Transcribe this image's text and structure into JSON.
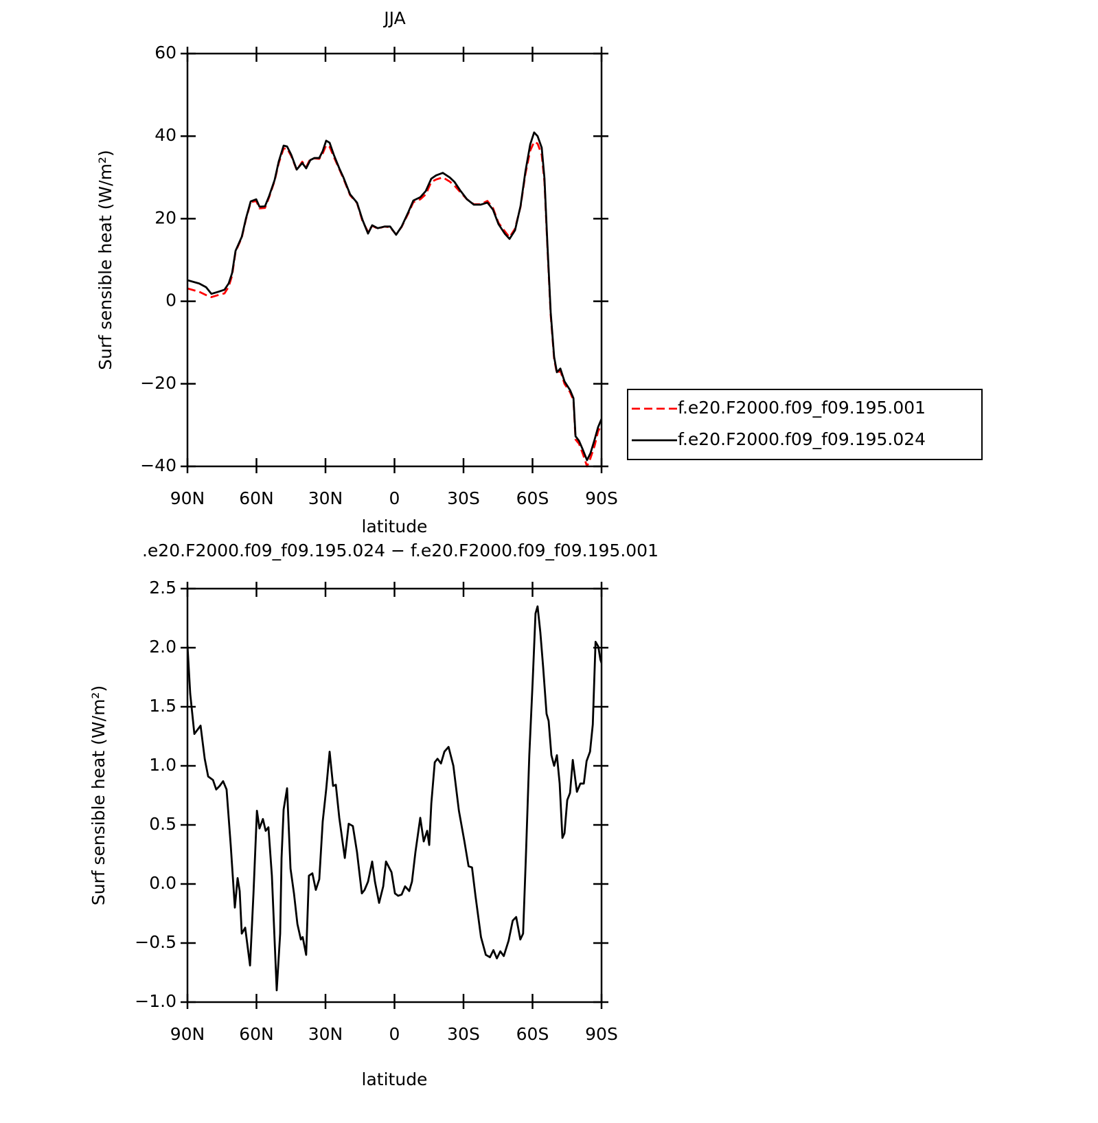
{
  "chart_data": [
    {
      "type": "line",
      "title": "JJA",
      "xlabel": "latitude",
      "ylabel": "Surf sensible heat (W/m²)",
      "xlim": [
        90,
        -90
      ],
      "xticks": [
        {
          "value": 90,
          "label": "90N"
        },
        {
          "value": 60,
          "label": "60N"
        },
        {
          "value": 30,
          "label": "30N"
        },
        0,
        {
          "value": -30,
          "label": "30S"
        },
        {
          "value": -60,
          "label": "60S"
        },
        {
          "value": -90,
          "label": "90S"
        }
      ],
      "ylim": [
        -40,
        60
      ],
      "yticks": [
        {
          "value": -40,
          "label": "−40"
        },
        {
          "value": -20,
          "label": "−20"
        },
        0,
        20,
        40,
        60
      ],
      "legend": "outside-right",
      "x": [
        90,
        84.9,
        81.9,
        79.6,
        76.6,
        73.9,
        72.1,
        70.6,
        69.1,
        66.4,
        64.6,
        62.5,
        60.1,
        58.7,
        56.3,
        54.5,
        52.1,
        50.3,
        48.2,
        46.7,
        44.9,
        42.5,
        40.1,
        38.4,
        36.6,
        34.8,
        32.7,
        31.2,
        29.7,
        28.2,
        26.4,
        24.0,
        22.2,
        19.3,
        16.3,
        13.9,
        11.5,
        9.7,
        7.3,
        4.3,
        1.9,
        -0.7,
        -3.1,
        -6.1,
        -8.2,
        -11.2,
        -13.6,
        -16.0,
        -18.1,
        -21.0,
        -24.0,
        -26.1,
        -28.5,
        -31.5,
        -34.5,
        -37.5,
        -40.4,
        -42.8,
        -45.2,
        -47.9,
        -50.0,
        -52.4,
        -54.8,
        -56.9,
        -59.0,
        -60.7,
        -62.2,
        -64.0,
        -65.2,
        -66.4,
        -67.9,
        -69.4,
        -70.6,
        -72.1,
        -73.9,
        -76.3,
        -77.8,
        -78.7,
        -80.2,
        -81.9,
        -83.7,
        -85.2,
        -87.0,
        -88.5,
        -90
      ],
      "series": [
        {
          "name": "f.e20.F2000.f09_f09.195.001",
          "color": "#ff0000",
          "dash": true,
          "values": [
            3.1,
            2.3,
            1.5,
            1.0,
            1.5,
            1.9,
            3.5,
            6.2,
            12.0,
            15.4,
            19.8,
            24.0,
            24.3,
            22.5,
            22.6,
            25.2,
            29.2,
            33.5,
            37.0,
            37.0,
            35.2,
            31.8,
            33.8,
            32.5,
            34.5,
            34.6,
            34.5,
            35.8,
            37.8,
            37.4,
            35.0,
            32.0,
            29.7,
            25.7,
            23.8,
            19.4,
            16.8,
            18.3,
            17.6,
            18.1,
            17.9,
            16.2,
            18.0,
            21.4,
            24.0,
            24.7,
            25.9,
            28.9,
            29.5,
            30.0,
            29.0,
            28.0,
            26.5,
            24.7,
            23.5,
            23.5,
            24.3,
            22.6,
            19.0,
            17.0,
            15.5,
            17.6,
            22.9,
            30.8,
            36.5,
            38.6,
            38.2,
            35.5,
            28.8,
            14.0,
            -3.4,
            -14.0,
            -17.5,
            -16.8,
            -20.0,
            -22.0,
            -24.0,
            -33.5,
            -34.5,
            -37.0,
            -40.0,
            -38.0,
            -35.0,
            -31.5,
            -30.0
          ]
        },
        {
          "name": "f.e20.F2000.f09_f09.195.024",
          "color": "#000000",
          "dash": false,
          "values": [
            5.1,
            4.3,
            3.4,
            1.8,
            2.3,
            2.8,
            4.3,
            6.8,
            12.2,
            15.6,
            20.0,
            24.2,
            24.7,
            22.9,
            23.0,
            25.5,
            29.4,
            33.9,
            37.7,
            37.5,
            35.5,
            31.9,
            33.5,
            32.2,
            34.2,
            34.7,
            34.7,
            36.4,
            38.9,
            38.4,
            35.5,
            32.2,
            30.0,
            25.9,
            23.9,
            19.7,
            16.4,
            18.4,
            17.7,
            18.1,
            18.1,
            16.1,
            18.1,
            21.7,
            24.4,
            25.2,
            26.7,
            29.7,
            30.5,
            31.1,
            30.0,
            28.9,
            26.9,
            24.7,
            23.4,
            23.4,
            23.9,
            22.2,
            18.7,
            16.4,
            15.1,
            17.2,
            23.1,
            31.4,
            38.0,
            40.9,
            40.0,
            37.2,
            29.7,
            14.7,
            -2.7,
            -13.5,
            -17.2,
            -16.3,
            -19.4,
            -21.5,
            -23.5,
            -32.7,
            -33.8,
            -36.0,
            -38.5,
            -36.8,
            -33.5,
            -30.5,
            -28.5
          ]
        }
      ]
    },
    {
      "type": "line",
      "title": ".e20.F2000.f09_f09.195.024 − f.e20.F2000.f09_f09.195.001",
      "xlabel": "latitude",
      "ylabel": "Surf sensible heat (W/m²)",
      "xlim": [
        90,
        -90
      ],
      "xticks": [
        {
          "value": 90,
          "label": "90N"
        },
        {
          "value": 60,
          "label": "60N"
        },
        {
          "value": 30,
          "label": "30N"
        },
        0,
        {
          "value": -30,
          "label": "30S"
        },
        {
          "value": -60,
          "label": "60S"
        },
        {
          "value": -90,
          "label": "90S"
        }
      ],
      "ylim": [
        -1,
        2.5
      ],
      "yticks": [
        {
          "value": -1,
          "label": "−1.0"
        },
        {
          "value": -0.5,
          "label": "−0.5"
        },
        {
          "value": 0,
          "label": "0.0"
        },
        0.5,
        {
          "value": 1,
          "label": "1.0"
        },
        1.5,
        {
          "value": 2,
          "label": "2.0"
        },
        2.5
      ],
      "x": [
        90,
        88.8,
        87.0,
        84.3,
        82.5,
        81.0,
        78.9,
        77.5,
        76.0,
        74.5,
        73.0,
        71.2,
        69.4,
        68.2,
        67.3,
        66.4,
        64.9,
        62.8,
        61.3,
        59.8,
        58.7,
        57.2,
        56.0,
        54.8,
        53.3,
        51.2,
        49.7,
        49.1,
        48.2,
        46.7,
        45.2,
        43.7,
        42.2,
        40.7,
        39.9,
        38.4,
        37.2,
        35.7,
        34.2,
        32.7,
        31.2,
        29.7,
        28.2,
        26.7,
        25.5,
        24.0,
        21.6,
        19.9,
        18.1,
        16.3,
        14.2,
        13.0,
        11.5,
        9.7,
        8.5,
        6.7,
        4.9,
        3.7,
        1.3,
        -0.2,
        -1.6,
        -3.1,
        -4.6,
        -6.4,
        -7.6,
        -9.1,
        -11.2,
        -12.7,
        -14.2,
        -15.1,
        -16.0,
        -17.5,
        -18.7,
        -20.2,
        -21.7,
        -23.5,
        -25.6,
        -28.0,
        -30.4,
        -32.2,
        -33.7,
        -35.2,
        -37.6,
        -39.7,
        -41.5,
        -43.0,
        -44.5,
        -46.0,
        -47.5,
        -49.6,
        -51.4,
        -52.9,
        -54.7,
        -55.9,
        -57.1,
        -58.6,
        -60.1,
        -61.3,
        -62.2,
        -63.4,
        -64.6,
        -66.1,
        -67.0,
        -68.2,
        -69.4,
        -70.6,
        -71.8,
        -73.0,
        -73.9,
        -75.1,
        -76.3,
        -77.5,
        -79.3,
        -80.8,
        -82.3,
        -83.5,
        -85.0,
        -86.2,
        -87.4,
        -88.6,
        -89.5,
        -90
      ],
      "series": [
        {
          "color": "#000000",
          "dash": false,
          "values": [
            2.02,
            1.61,
            1.27,
            1.34,
            1.06,
            0.91,
            0.88,
            0.8,
            0.83,
            0.87,
            0.8,
            0.33,
            -0.2,
            0.05,
            -0.06,
            -0.42,
            -0.37,
            -0.69,
            -0.08,
            0.62,
            0.47,
            0.55,
            0.45,
            0.48,
            0.07,
            -0.9,
            -0.42,
            0.22,
            0.63,
            0.81,
            0.13,
            -0.08,
            -0.34,
            -0.47,
            -0.45,
            -0.6,
            0.07,
            0.09,
            -0.05,
            0.04,
            0.53,
            0.8,
            1.12,
            0.83,
            0.84,
            0.56,
            0.22,
            0.51,
            0.49,
            0.27,
            -0.08,
            -0.05,
            0.02,
            0.19,
            0.02,
            -0.16,
            -0.02,
            0.19,
            0.1,
            -0.08,
            -0.1,
            -0.09,
            -0.02,
            -0.06,
            0.02,
            0.27,
            0.56,
            0.36,
            0.45,
            0.33,
            0.68,
            1.03,
            1.06,
            1.02,
            1.12,
            1.16,
            1.0,
            0.62,
            0.36,
            0.15,
            0.14,
            -0.1,
            -0.45,
            -0.6,
            -0.62,
            -0.56,
            -0.63,
            -0.57,
            -0.61,
            -0.48,
            -0.31,
            -0.28,
            -0.47,
            -0.42,
            0.22,
            1.09,
            1.73,
            2.29,
            2.35,
            2.13,
            1.84,
            1.44,
            1.38,
            1.09,
            1.0,
            1.09,
            0.85,
            0.39,
            0.43,
            0.71,
            0.77,
            1.05,
            0.78,
            0.85,
            0.85,
            1.04,
            1.12,
            1.35,
            2.05,
            2.01,
            1.9,
            1.87
          ]
        }
      ]
    }
  ]
}
